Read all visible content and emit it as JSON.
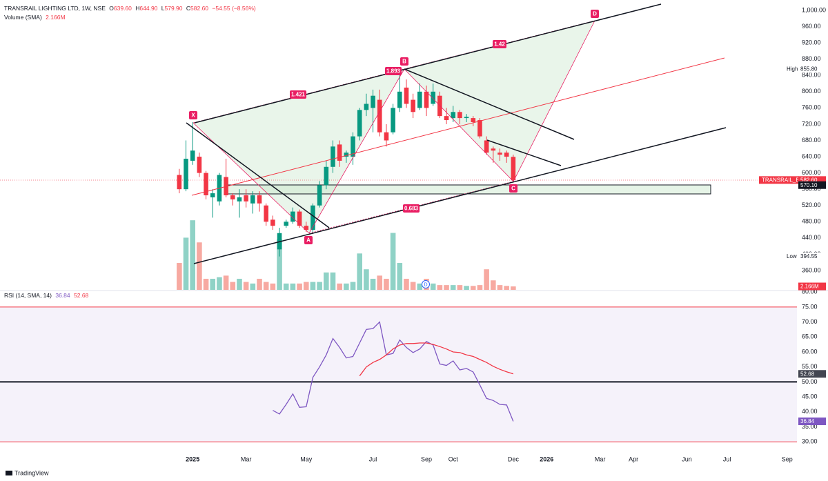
{
  "chart_data": {
    "type": "candlestick",
    "legend": {
      "symbol": "TRANSRAIL LIGHTING LTD, 1W, NSE",
      "open_label": "O",
      "open": "639.60",
      "high_label": "H",
      "high": "644.90",
      "low_label": "L",
      "low": "579.90",
      "close_label": "C",
      "close": "582.60",
      "change": "−54.55 (−8.56%)",
      "volume_title": "Volume (SMA)",
      "volume": "2.166M",
      "rsi_title": "RSI (14, SMA, 14)",
      "rsi": "36.84",
      "rsi_sma": "52.68"
    },
    "categories": [
      null,
      null,
      "2025",
      null,
      null,
      null,
      null,
      null,
      null,
      null,
      "Mar",
      null,
      null,
      null,
      null,
      null,
      null,
      null,
      null,
      "May",
      null,
      null,
      null,
      null,
      null,
      null,
      null,
      null,
      null,
      "Jul",
      null,
      null,
      null,
      null,
      null,
      null,
      null,
      "Sep",
      null,
      null,
      null,
      "Oct",
      null,
      null,
      null,
      null,
      null,
      null,
      null,
      null,
      "Dec",
      null,
      null,
      null,
      null,
      "2026",
      null,
      null,
      null,
      null,
      null,
      null,
      null,
      "Mar",
      null,
      null,
      null,
      null,
      "Apr",
      null,
      null,
      null,
      null,
      null,
      null,
      null,
      "Jun",
      null,
      null,
      null,
      null,
      null,
      "Jul",
      null,
      null,
      null,
      null,
      null,
      null,
      null,
      null,
      "Sep",
      null
    ],
    "open": [
      595,
      560,
      630,
      640,
      600,
      540,
      530,
      590,
      545,
      530,
      545,
      525,
      545,
      520,
      485,
      412,
      470,
      480,
      505,
      470,
      460,
      520,
      570,
      615,
      670,
      640,
      640,
      690,
      755,
      760,
      780,
      700,
      700,
      760,
      810,
      780,
      760,
      800,
      770,
      790,
      740,
      735,
      750,
      735,
      735,
      730,
      680,
      660,
      650,
      650,
      639.6,
      null,
      null,
      null,
      null,
      null,
      null,
      null,
      null,
      null,
      null,
      null,
      null,
      null,
      null,
      null,
      null,
      null,
      null,
      null,
      null,
      null,
      null,
      null,
      null,
      null,
      null,
      null,
      null,
      null,
      null,
      null,
      null,
      null,
      null,
      null,
      null,
      null,
      null,
      null,
      null,
      null,
      null
    ],
    "high": [
      610,
      680,
      725,
      650,
      605,
      560,
      600,
      635,
      550,
      560,
      560,
      555,
      555,
      525,
      495,
      465,
      485,
      515,
      510,
      480,
      525,
      580,
      630,
      680,
      680,
      655,
      700,
      760,
      795,
      805,
      805,
      720,
      770,
      855.8,
      830,
      795,
      820,
      815,
      820,
      800,
      760,
      765,
      755,
      745,
      740,
      735,
      690,
      665,
      660,
      655,
      644.9,
      null,
      null,
      null,
      null,
      null,
      null,
      null,
      null,
      null,
      null,
      null,
      null,
      null,
      null,
      null,
      null,
      null,
      null,
      null,
      null,
      null,
      null,
      null,
      null,
      null,
      null,
      null,
      null,
      null,
      null,
      null,
      null,
      null,
      null,
      null,
      null,
      null,
      null,
      null,
      null,
      null,
      null
    ],
    "low": [
      550,
      555,
      620,
      590,
      535,
      490,
      520,
      540,
      520,
      490,
      515,
      500,
      505,
      470,
      460,
      394.55,
      465,
      475,
      465,
      455,
      450,
      515,
      560,
      600,
      615,
      625,
      620,
      680,
      740,
      700,
      690,
      665,
      695,
      750,
      760,
      735,
      755,
      740,
      765,
      735,
      720,
      725,
      720,
      725,
      715,
      685,
      645,
      625,
      630,
      625,
      579.9,
      null,
      null,
      null,
      null,
      null,
      null,
      null,
      null,
      null,
      null,
      null,
      null,
      null,
      null,
      null,
      null,
      null,
      null,
      null,
      null,
      null,
      null,
      null,
      null,
      null,
      null,
      null,
      null,
      null,
      null,
      null,
      null,
      null,
      null,
      null,
      null,
      null,
      null,
      null,
      null,
      null,
      null
    ],
    "close": [
      560,
      635,
      655,
      600,
      545,
      550,
      595,
      545,
      535,
      540,
      530,
      545,
      525,
      480,
      470,
      452,
      480,
      505,
      470,
      460,
      520,
      570,
      615,
      665,
      630,
      650,
      690,
      755,
      770,
      790,
      700,
      680,
      760,
      800,
      770,
      750,
      800,
      760,
      800,
      740,
      730,
      750,
      735,
      738,
      725,
      690,
      650,
      655,
      645,
      640,
      582.6,
      null,
      null,
      null,
      null,
      null,
      null,
      null,
      null,
      null,
      null,
      null,
      null,
      null,
      null,
      null,
      null,
      null,
      null,
      null,
      null,
      null,
      null,
      null,
      null,
      null,
      null,
      null,
      null,
      null,
      null,
      null,
      null,
      null,
      null,
      null,
      null,
      null,
      null,
      null,
      null,
      null,
      null
    ],
    "volume": [
      17,
      33,
      44,
      30,
      7,
      7,
      8,
      9,
      5,
      7,
      5,
      4,
      7,
      5,
      4,
      32,
      4,
      4,
      4,
      5,
      5,
      5,
      11,
      11,
      4,
      4,
      5,
      23,
      13,
      7,
      9,
      7,
      36,
      17,
      7,
      5,
      4,
      7,
      4,
      3,
      3,
      3,
      3,
      2.5,
      2.5,
      3,
      13,
      6,
      3,
      2.5,
      2.166,
      null,
      null,
      null,
      null,
      null,
      null,
      null,
      null,
      null,
      null,
      null,
      null,
      null,
      null,
      null,
      null,
      null,
      null,
      null,
      null,
      null,
      null,
      null,
      null,
      null,
      null,
      null,
      null,
      null,
      null,
      null,
      null,
      null,
      null,
      null,
      null,
      null,
      null,
      null,
      null,
      null,
      null
    ],
    "volume_lim": [
      0,
      48
    ],
    "up_color": "#089981",
    "down_color": "#f23645",
    "volume_up_color": "#8fd2c6",
    "volume_down_color": "#f7a9a1",
    "ylim": [
      312.4,
      1025.5
    ],
    "yticks": [
      {
        "value": 1000,
        "label": "1,000.00"
      },
      {
        "value": 960,
        "label": "960.00"
      },
      {
        "value": 920,
        "label": "920.00"
      },
      {
        "value": 880,
        "label": "880.00"
      },
      {
        "value": 840,
        "label": "840.00"
      },
      {
        "value": 800,
        "label": "800.00"
      },
      {
        "value": 760,
        "label": "760.00"
      },
      {
        "value": 720,
        "label": "720.00"
      },
      {
        "value": 680,
        "label": "680.00"
      },
      {
        "value": 640,
        "label": "640.00"
      },
      {
        "value": 600,
        "label": "600.00"
      },
      {
        "value": 560,
        "label": "560.00"
      },
      {
        "value": 520,
        "label": "520.00"
      },
      {
        "value": 480,
        "label": "480.00"
      },
      {
        "value": 440,
        "label": "440.00"
      },
      {
        "value": 400,
        "label": "400.00"
      },
      {
        "value": 360,
        "label": "360.00"
      }
    ],
    "price_tags": [
      {
        "name": "High",
        "value": 855.8,
        "value_label": "855.80",
        "color": "#ffffff"
      },
      {
        "name": "Low",
        "value": 394.55,
        "value_label": "394.55",
        "color": "#ffffff"
      },
      {
        "name": "TRANSRAIL_EQ",
        "value": 582.6,
        "value_label": "582.60",
        "color": "#f23645"
      },
      {
        "value": 570.1,
        "value_label": "570.10",
        "color": "#131722"
      }
    ],
    "volume_tag": {
      "value": 2.166,
      "value_label": "2.166M",
      "color": "#f23645"
    },
    "pattern": {
      "points": [
        "X",
        "A",
        "B",
        "C",
        "D"
      ],
      "ratios": [
        "1.421",
        "1.893",
        "1.42",
        "0.683"
      ],
      "color": "#e91e63"
    },
    "event": "D",
    "rsi": {
      "ylim": [
        26.6,
        80.5
      ],
      "yticks": [
        {
          "value": 80,
          "label": "80.00"
        },
        {
          "value": 75,
          "label": "75.00"
        },
        {
          "value": 70,
          "label": "70.00"
        },
        {
          "value": 65,
          "label": "65.00"
        },
        {
          "value": 60,
          "label": "60.00"
        },
        {
          "value": 55,
          "label": "55.00"
        },
        {
          "value": 50,
          "label": "50.00"
        },
        {
          "value": 45,
          "label": "45.00"
        },
        {
          "value": 40,
          "label": "40.00"
        },
        {
          "value": 35,
          "label": "35.00"
        },
        {
          "value": 30,
          "label": "30.00"
        }
      ],
      "bands": [
        75,
        50,
        30
      ],
      "band_color": "#7e57c2",
      "series": [
        {
          "color": "#7e57c2",
          "values": [
            null,
            null,
            null,
            null,
            null,
            null,
            null,
            null,
            null,
            null,
            null,
            null,
            null,
            null,
            40.5,
            39.3,
            42.5,
            46,
            41.5,
            41.7,
            51.5,
            55,
            59,
            64.5,
            61.5,
            58,
            58.5,
            63,
            67.5,
            67.8,
            70,
            59,
            59.5,
            64,
            61.5,
            59.8,
            61,
            63.5,
            62.3,
            56,
            55.5,
            57,
            54,
            54.5,
            53.3,
            49,
            44.5,
            43.8,
            42.5,
            42.3,
            36.84,
            null,
            null,
            null,
            null,
            null,
            null,
            null,
            null,
            null,
            null,
            null,
            null,
            null,
            null,
            null,
            null,
            null,
            null,
            null,
            null,
            null,
            null,
            null,
            null,
            null,
            null,
            null,
            null,
            null,
            null,
            null,
            null,
            null,
            null,
            null,
            null,
            null,
            null,
            null,
            null,
            null,
            null
          ]
        },
        {
          "color": "#f23645",
          "values": [
            null,
            null,
            null,
            null,
            null,
            null,
            null,
            null,
            null,
            null,
            null,
            null,
            null,
            null,
            null,
            null,
            null,
            null,
            null,
            null,
            null,
            null,
            null,
            null,
            null,
            null,
            null,
            52,
            55,
            56.5,
            57.5,
            59,
            61,
            62.3,
            62.8,
            62.8,
            63,
            63,
            62.5,
            61.8,
            61,
            60,
            59.8,
            59,
            58.5,
            57.5,
            56.5,
            55.2,
            54.2,
            53.4,
            52.68,
            null,
            null,
            null,
            null,
            null,
            null,
            null,
            null,
            null,
            null,
            null,
            null,
            null,
            null,
            null,
            null,
            null,
            null,
            null,
            null,
            null,
            null,
            null,
            null,
            null,
            null,
            null,
            null,
            null,
            null,
            null,
            null,
            null,
            null,
            null,
            null,
            null,
            null,
            null,
            null,
            null,
            null
          ]
        }
      ],
      "tags": [
        {
          "value": 52.68,
          "value_label": "52.68",
          "color": "#434651"
        },
        {
          "value": 36.84,
          "value_label": "36.84",
          "color": "#7e57c2"
        }
      ]
    },
    "footer": "TradingView"
  }
}
